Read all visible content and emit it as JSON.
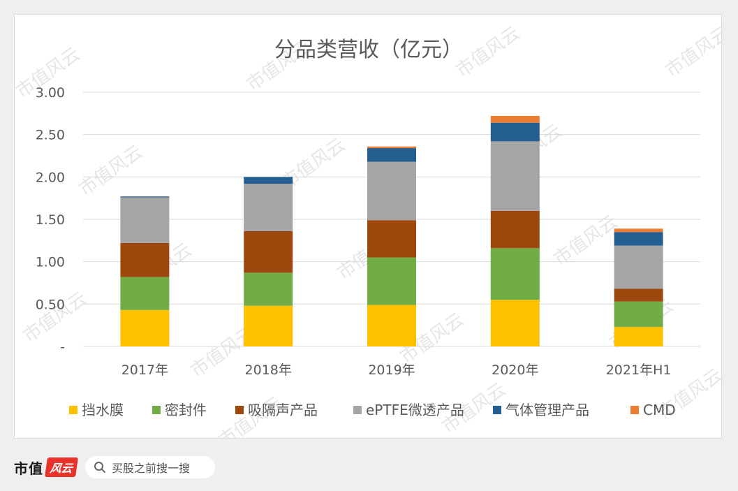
{
  "chart_data": {
    "type": "bar",
    "stacked": true,
    "title": "分品类营收（亿元）",
    "categories": [
      "2017年",
      "2018年",
      "2019年",
      "2020年",
      "2021年H1"
    ],
    "y_ticks": [
      "-",
      "0.50",
      "1.00",
      "1.50",
      "2.00",
      "2.50",
      "3.00"
    ],
    "ylim": [
      0,
      3.0
    ],
    "grid": true,
    "legend_position": "bottom",
    "series": [
      {
        "name": "挡水膜",
        "color": "#ffc000",
        "values": [
          0.43,
          0.48,
          0.49,
          0.55,
          0.23
        ]
      },
      {
        "name": "密封件",
        "color": "#70ad47",
        "values": [
          0.39,
          0.39,
          0.56,
          0.61,
          0.3
        ]
      },
      {
        "name": "吸隔声产品",
        "color": "#9e480e",
        "values": [
          0.4,
          0.49,
          0.44,
          0.44,
          0.15
        ]
      },
      {
        "name": "ePTFE微透产品",
        "color": "#a5a5a5",
        "values": [
          0.54,
          0.56,
          0.69,
          0.82,
          0.51
        ]
      },
      {
        "name": "气体管理产品",
        "color": "#255e91",
        "values": [
          0.01,
          0.08,
          0.16,
          0.22,
          0.16
        ]
      },
      {
        "name": "CMD",
        "color": "#ed7d31",
        "values": [
          0.0,
          0.0,
          0.02,
          0.08,
          0.04
        ]
      }
    ]
  },
  "watermark": "市值风云",
  "footer": {
    "brand": "市值",
    "logo": "风云",
    "search_text": "买股之前搜一搜",
    "search_icon": "search-icon"
  }
}
